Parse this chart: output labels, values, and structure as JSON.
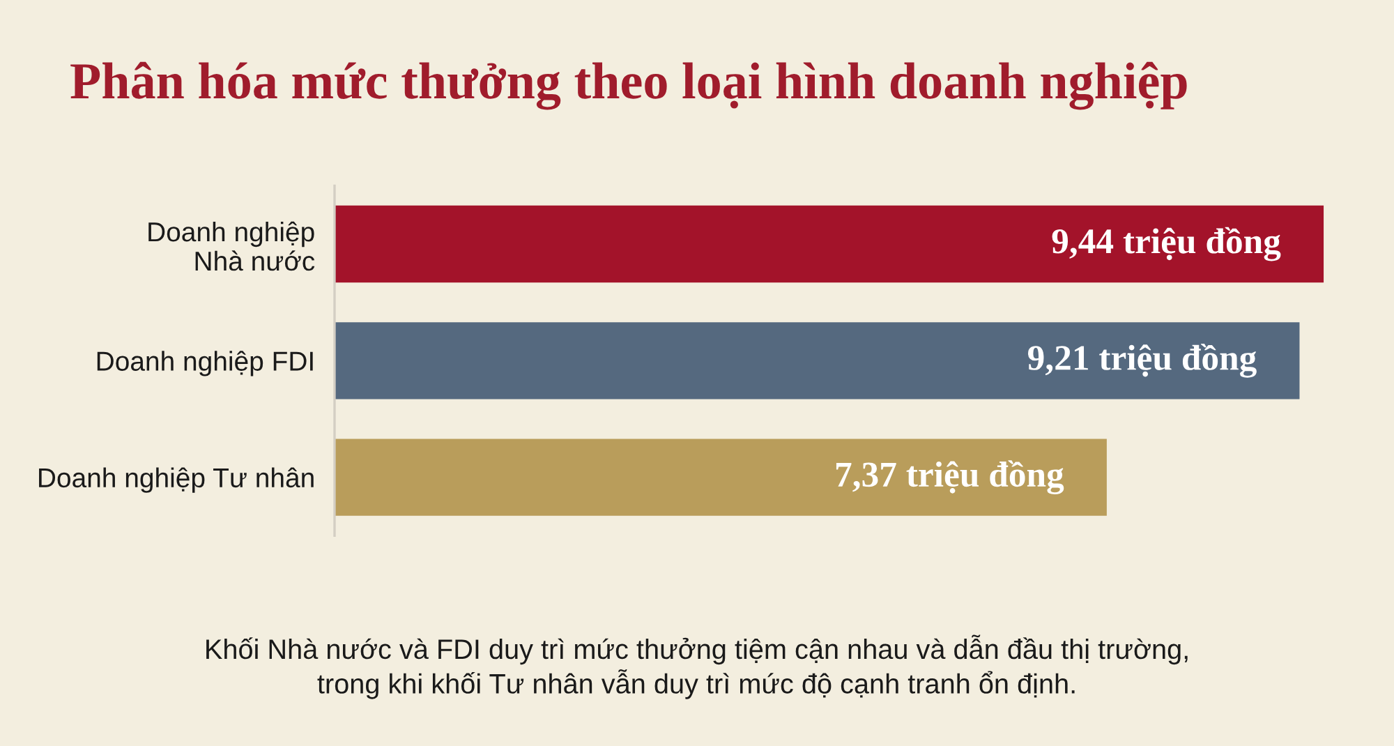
{
  "chart_data": {
    "type": "bar",
    "orientation": "horizontal",
    "title": "Phân hóa mức thưởng theo loại hình doanh nghiệp",
    "categories": [
      "Doanh nghiệp\nNhà nước",
      "Doanh nghiệp FDI",
      "Doanh nghiệp Tư nhân"
    ],
    "values": [
      9.44,
      9.21,
      7.37
    ],
    "colors": [
      "#a3132a",
      "#55697f",
      "#b99d5b"
    ],
    "value_labels": [
      "9,44 triệu đồng",
      "9,21 triệu đồng",
      "7,37 triệu đồng"
    ],
    "tick_labels": "y",
    "annotations": [
      "Khối Nhà nước và FDI duy trì mức thưởng tiệm cận nhau và dẫn đầu thị trường,\ntrong khi khối Tư nhân vẫn duy trì mức độ cạnh tranh ổn định."
    ]
  }
}
